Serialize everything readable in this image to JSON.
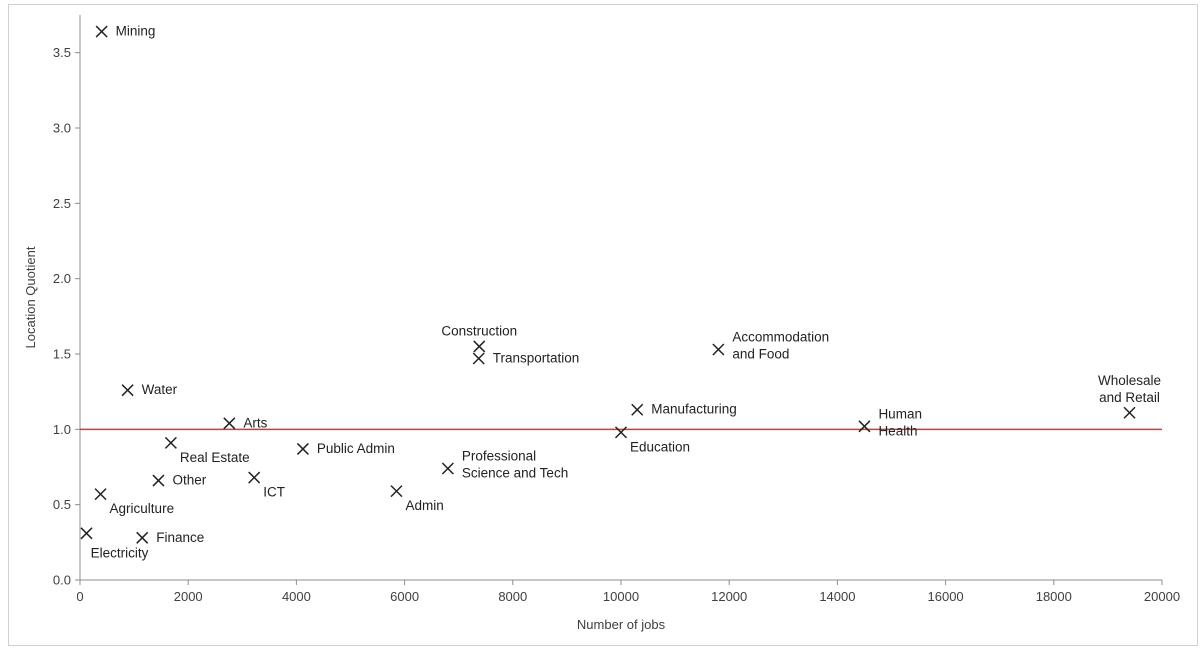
{
  "chart_data": {
    "type": "scatter",
    "title": "",
    "xlabel": "Number of jobs",
    "ylabel": "Location Quotient",
    "xlim": [
      0,
      20000
    ],
    "ylim": [
      0,
      3.75
    ],
    "xticks": [
      "0",
      "2000",
      "4000",
      "6000",
      "8000",
      "10000",
      "12000",
      "14000",
      "16000",
      "18000",
      "20000"
    ],
    "yticks": [
      "0.0",
      "0.5",
      "1.0",
      "1.5",
      "2.0",
      "2.5",
      "3.0",
      "3.5"
    ],
    "grid": false,
    "reference_line": {
      "y": 1.0,
      "color": "#e8312f"
    },
    "marker": "x",
    "points": [
      {
        "label": [
          "Mining"
        ],
        "x": 400,
        "y": 3.64,
        "label_pos": "right"
      },
      {
        "label": [
          "Water"
        ],
        "x": 880,
        "y": 1.26,
        "label_pos": "right"
      },
      {
        "label": [
          "Arts"
        ],
        "x": 2760,
        "y": 1.04,
        "label_pos": "right"
      },
      {
        "label": [
          "Real Estate"
        ],
        "x": 1680,
        "y": 0.91,
        "label_pos": "below-right"
      },
      {
        "label": [
          "Public Admin"
        ],
        "x": 4120,
        "y": 0.87,
        "label_pos": "right"
      },
      {
        "label": [
          "Other"
        ],
        "x": 1450,
        "y": 0.66,
        "label_pos": "right"
      },
      {
        "label": [
          "ICT"
        ],
        "x": 3220,
        "y": 0.68,
        "label_pos": "below-right"
      },
      {
        "label": [
          "Agriculture"
        ],
        "x": 380,
        "y": 0.57,
        "label_pos": "below-right"
      },
      {
        "label": [
          "Electricity"
        ],
        "x": 120,
        "y": 0.31,
        "label_pos": "below"
      },
      {
        "label": [
          "Finance"
        ],
        "x": 1150,
        "y": 0.28,
        "label_pos": "right"
      },
      {
        "label": [
          "Construction"
        ],
        "x": 7380,
        "y": 1.55,
        "label_pos": "above"
      },
      {
        "label": [
          "Transportation"
        ],
        "x": 7370,
        "y": 1.47,
        "label_pos": "right"
      },
      {
        "label": [
          "Admin"
        ],
        "x": 5850,
        "y": 0.59,
        "label_pos": "below-right"
      },
      {
        "label": [
          "Professional",
          "Science and Tech"
        ],
        "x": 6800,
        "y": 0.74,
        "label_pos": "right"
      },
      {
        "label": [
          "Manufacturing"
        ],
        "x": 10300,
        "y": 1.13,
        "label_pos": "right"
      },
      {
        "label": [
          "Education"
        ],
        "x": 10000,
        "y": 0.98,
        "label_pos": "below-right"
      },
      {
        "label": [
          "Accommodation",
          "and Food"
        ],
        "x": 11800,
        "y": 1.53,
        "label_pos": "right"
      },
      {
        "label": [
          "Human",
          "Health"
        ],
        "x": 14500,
        "y": 1.02,
        "label_pos": "right"
      },
      {
        "label": [
          "Wholesale",
          "and Retail"
        ],
        "x": 19400,
        "y": 1.11,
        "label_pos": "above"
      }
    ]
  }
}
